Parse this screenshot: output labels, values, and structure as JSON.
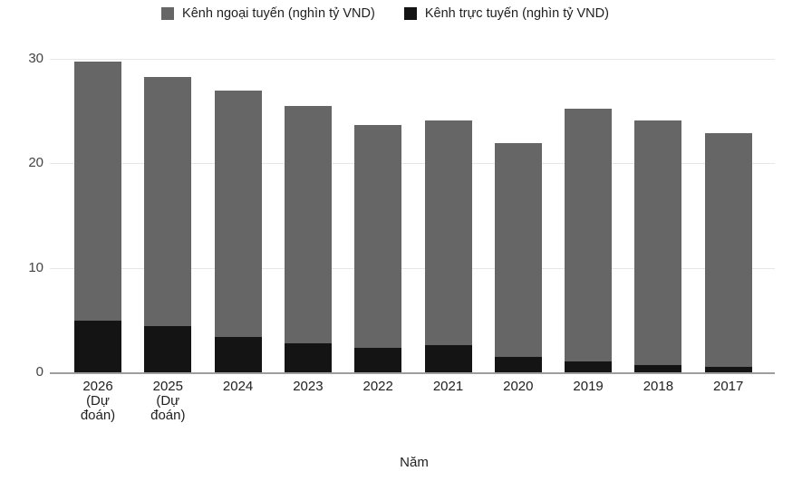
{
  "legend": {
    "items": [
      {
        "label": "Kênh ngoại tuyến (nghìn tỷ VND)"
      },
      {
        "label": "Kênh trực tuyến (nghìn tỷ VND)"
      }
    ]
  },
  "colors": {
    "offline": "#666666",
    "online": "#141414",
    "gridline": "#e6e6e6",
    "baseline": "#9e9e9e",
    "tick_text": "#444444",
    "label_text": "#212121"
  },
  "chart_data": {
    "type": "bar",
    "stacked": true,
    "title": "",
    "xlabel": "Năm",
    "ylabel": "",
    "ylim": [
      0,
      30
    ],
    "yticks": [
      0,
      10,
      20,
      30
    ],
    "grid": true,
    "legend_position": "top",
    "categories": [
      "2026",
      "2025",
      "2024",
      "2023",
      "2022",
      "2021",
      "2020",
      "2019",
      "2018",
      "2017"
    ],
    "category_label_lines": [
      [
        "2026",
        "(Dự",
        "đoán)"
      ],
      [
        "2025",
        "(Dự",
        "đoán)"
      ],
      [
        "2024"
      ],
      [
        "2023"
      ],
      [
        "2022"
      ],
      [
        "2021"
      ],
      [
        "2020"
      ],
      [
        "2019"
      ],
      [
        "2018"
      ],
      [
        "2017"
      ]
    ],
    "series": [
      {
        "name": "Kênh ngoại tuyến (nghìn tỷ VND)",
        "color": "#666666",
        "values": [
          24.8,
          23.9,
          23.6,
          22.7,
          21.4,
          21.5,
          20.4,
          24.2,
          23.4,
          22.4
        ]
      },
      {
        "name": "Kênh trực tuyến (nghìn tỷ VND)",
        "color": "#141414",
        "values": [
          4.9,
          4.4,
          3.4,
          2.8,
          2.3,
          2.6,
          1.5,
          1.0,
          0.7,
          0.5
        ]
      }
    ],
    "totals": [
      29.7,
      28.3,
      27.0,
      25.5,
      23.7,
      24.1,
      21.9,
      25.2,
      24.1,
      22.9
    ]
  }
}
